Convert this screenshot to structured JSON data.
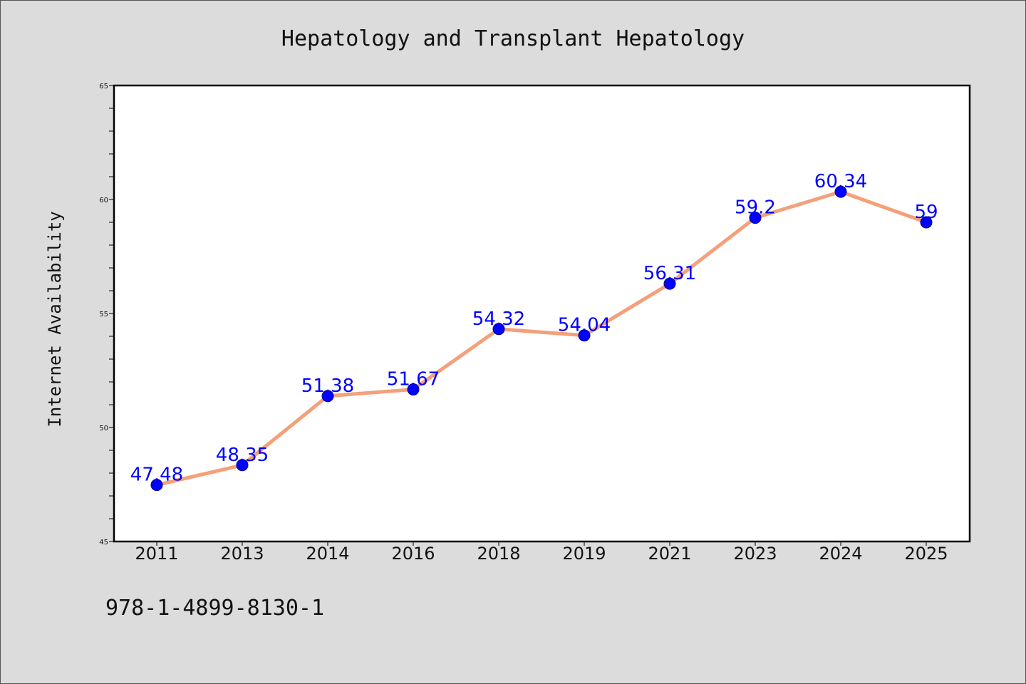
{
  "chart_data": {
    "type": "line",
    "title": "Hepatology and Transplant Hepatology",
    "ylabel": "Internet Availability",
    "xlabel": "",
    "categories": [
      "2011",
      "2013",
      "2014",
      "2016",
      "2018",
      "2019",
      "2021",
      "2023",
      "2024",
      "2025"
    ],
    "values": [
      47.48,
      48.35,
      51.38,
      51.67,
      54.32,
      54.04,
      56.31,
      59.2,
      60.34,
      59
    ],
    "data_labels": [
      "47.48",
      "48.35",
      "51.38",
      "51.67",
      "54.32",
      "54.04",
      "56.31",
      "59.2",
      "60.34",
      "59"
    ],
    "ylim": [
      45,
      65
    ],
    "yticks": [
      "45",
      "50",
      "55",
      "60",
      "65"
    ],
    "grid": false,
    "line_color": "#f4a07a",
    "marker_color": "#0000ff",
    "label_color": "#0000ff"
  },
  "footer": {
    "isbn": "978-1-4899-8130-1"
  }
}
